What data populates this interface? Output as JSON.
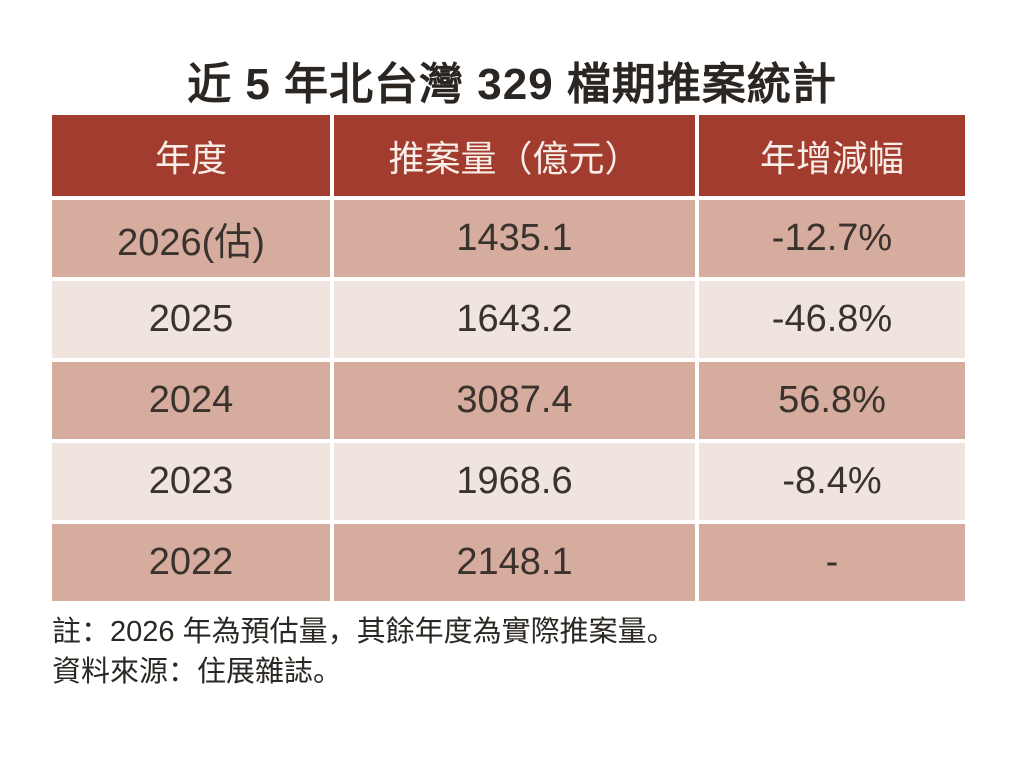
{
  "title": "近 5 年北台灣 329 檔期推案統計",
  "colors": {
    "header_bg": "#a23c2e",
    "header_fg": "#f8ede7",
    "row_pink": "#d6ac9e",
    "row_cream": "#efe5de",
    "body_fg": "#3a322c",
    "page_bg": "#ffffff"
  },
  "table": {
    "headers": {
      "year": "年度",
      "volume": "推案量（億元）",
      "yoy": "年增減幅"
    },
    "rows": [
      {
        "year": "2026(估)",
        "volume": "1435.1",
        "yoy": "-12.7%"
      },
      {
        "year": "2025",
        "volume": "1643.2",
        "yoy": "-46.8%"
      },
      {
        "year": "2024",
        "volume": "3087.4",
        "yoy": "56.8%"
      },
      {
        "year": "2023",
        "volume": "1968.6",
        "yoy": "-8.4%"
      },
      {
        "year": "2022",
        "volume": "2148.1",
        "yoy": "-"
      }
    ]
  },
  "notes": {
    "note": "註：2026 年為預估量，其餘年度為實際推案量。",
    "source": "資料來源：住展雜誌。"
  },
  "chart_data": {
    "type": "table",
    "title": "近 5 年北台灣 329 檔期推案統計",
    "columns": [
      "年度",
      "推案量（億元）",
      "年增減幅"
    ],
    "categories": [
      "2026(估)",
      "2025",
      "2024",
      "2023",
      "2022"
    ],
    "series": [
      {
        "name": "推案量（億元）",
        "values": [
          1435.1,
          1643.2,
          3087.4,
          1968.6,
          2148.1
        ]
      },
      {
        "name": "年增減幅(%)",
        "values": [
          -12.7,
          -46.8,
          56.8,
          -8.4,
          null
        ]
      }
    ],
    "annotations": [
      "註：2026 年為預估量，其餘年度為實際推案量。",
      "資料來源：住展雜誌。"
    ]
  }
}
